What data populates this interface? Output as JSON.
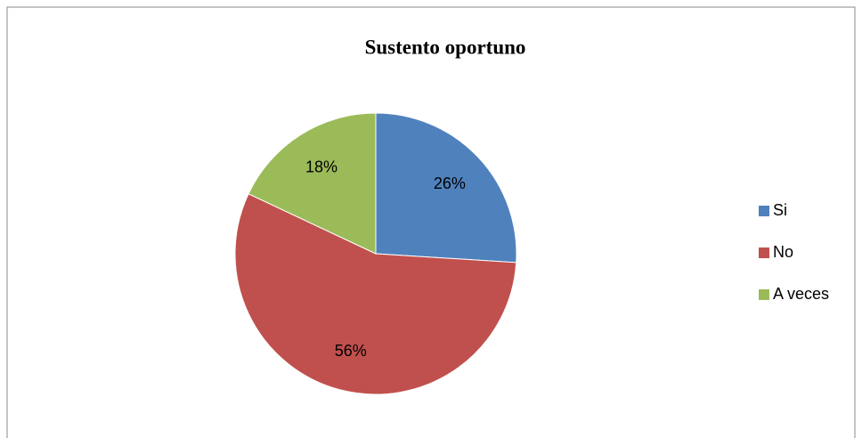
{
  "chart_data": {
    "type": "pie",
    "title": "Sustento oportuno",
    "categories": [
      "Si",
      "No",
      "A veces"
    ],
    "values": [
      26,
      56,
      18
    ],
    "value_labels": [
      "26%",
      "56%",
      "18%"
    ],
    "colors": [
      "#4f81bd",
      "#c0504d",
      "#9bbb59"
    ],
    "legend": "right"
  }
}
